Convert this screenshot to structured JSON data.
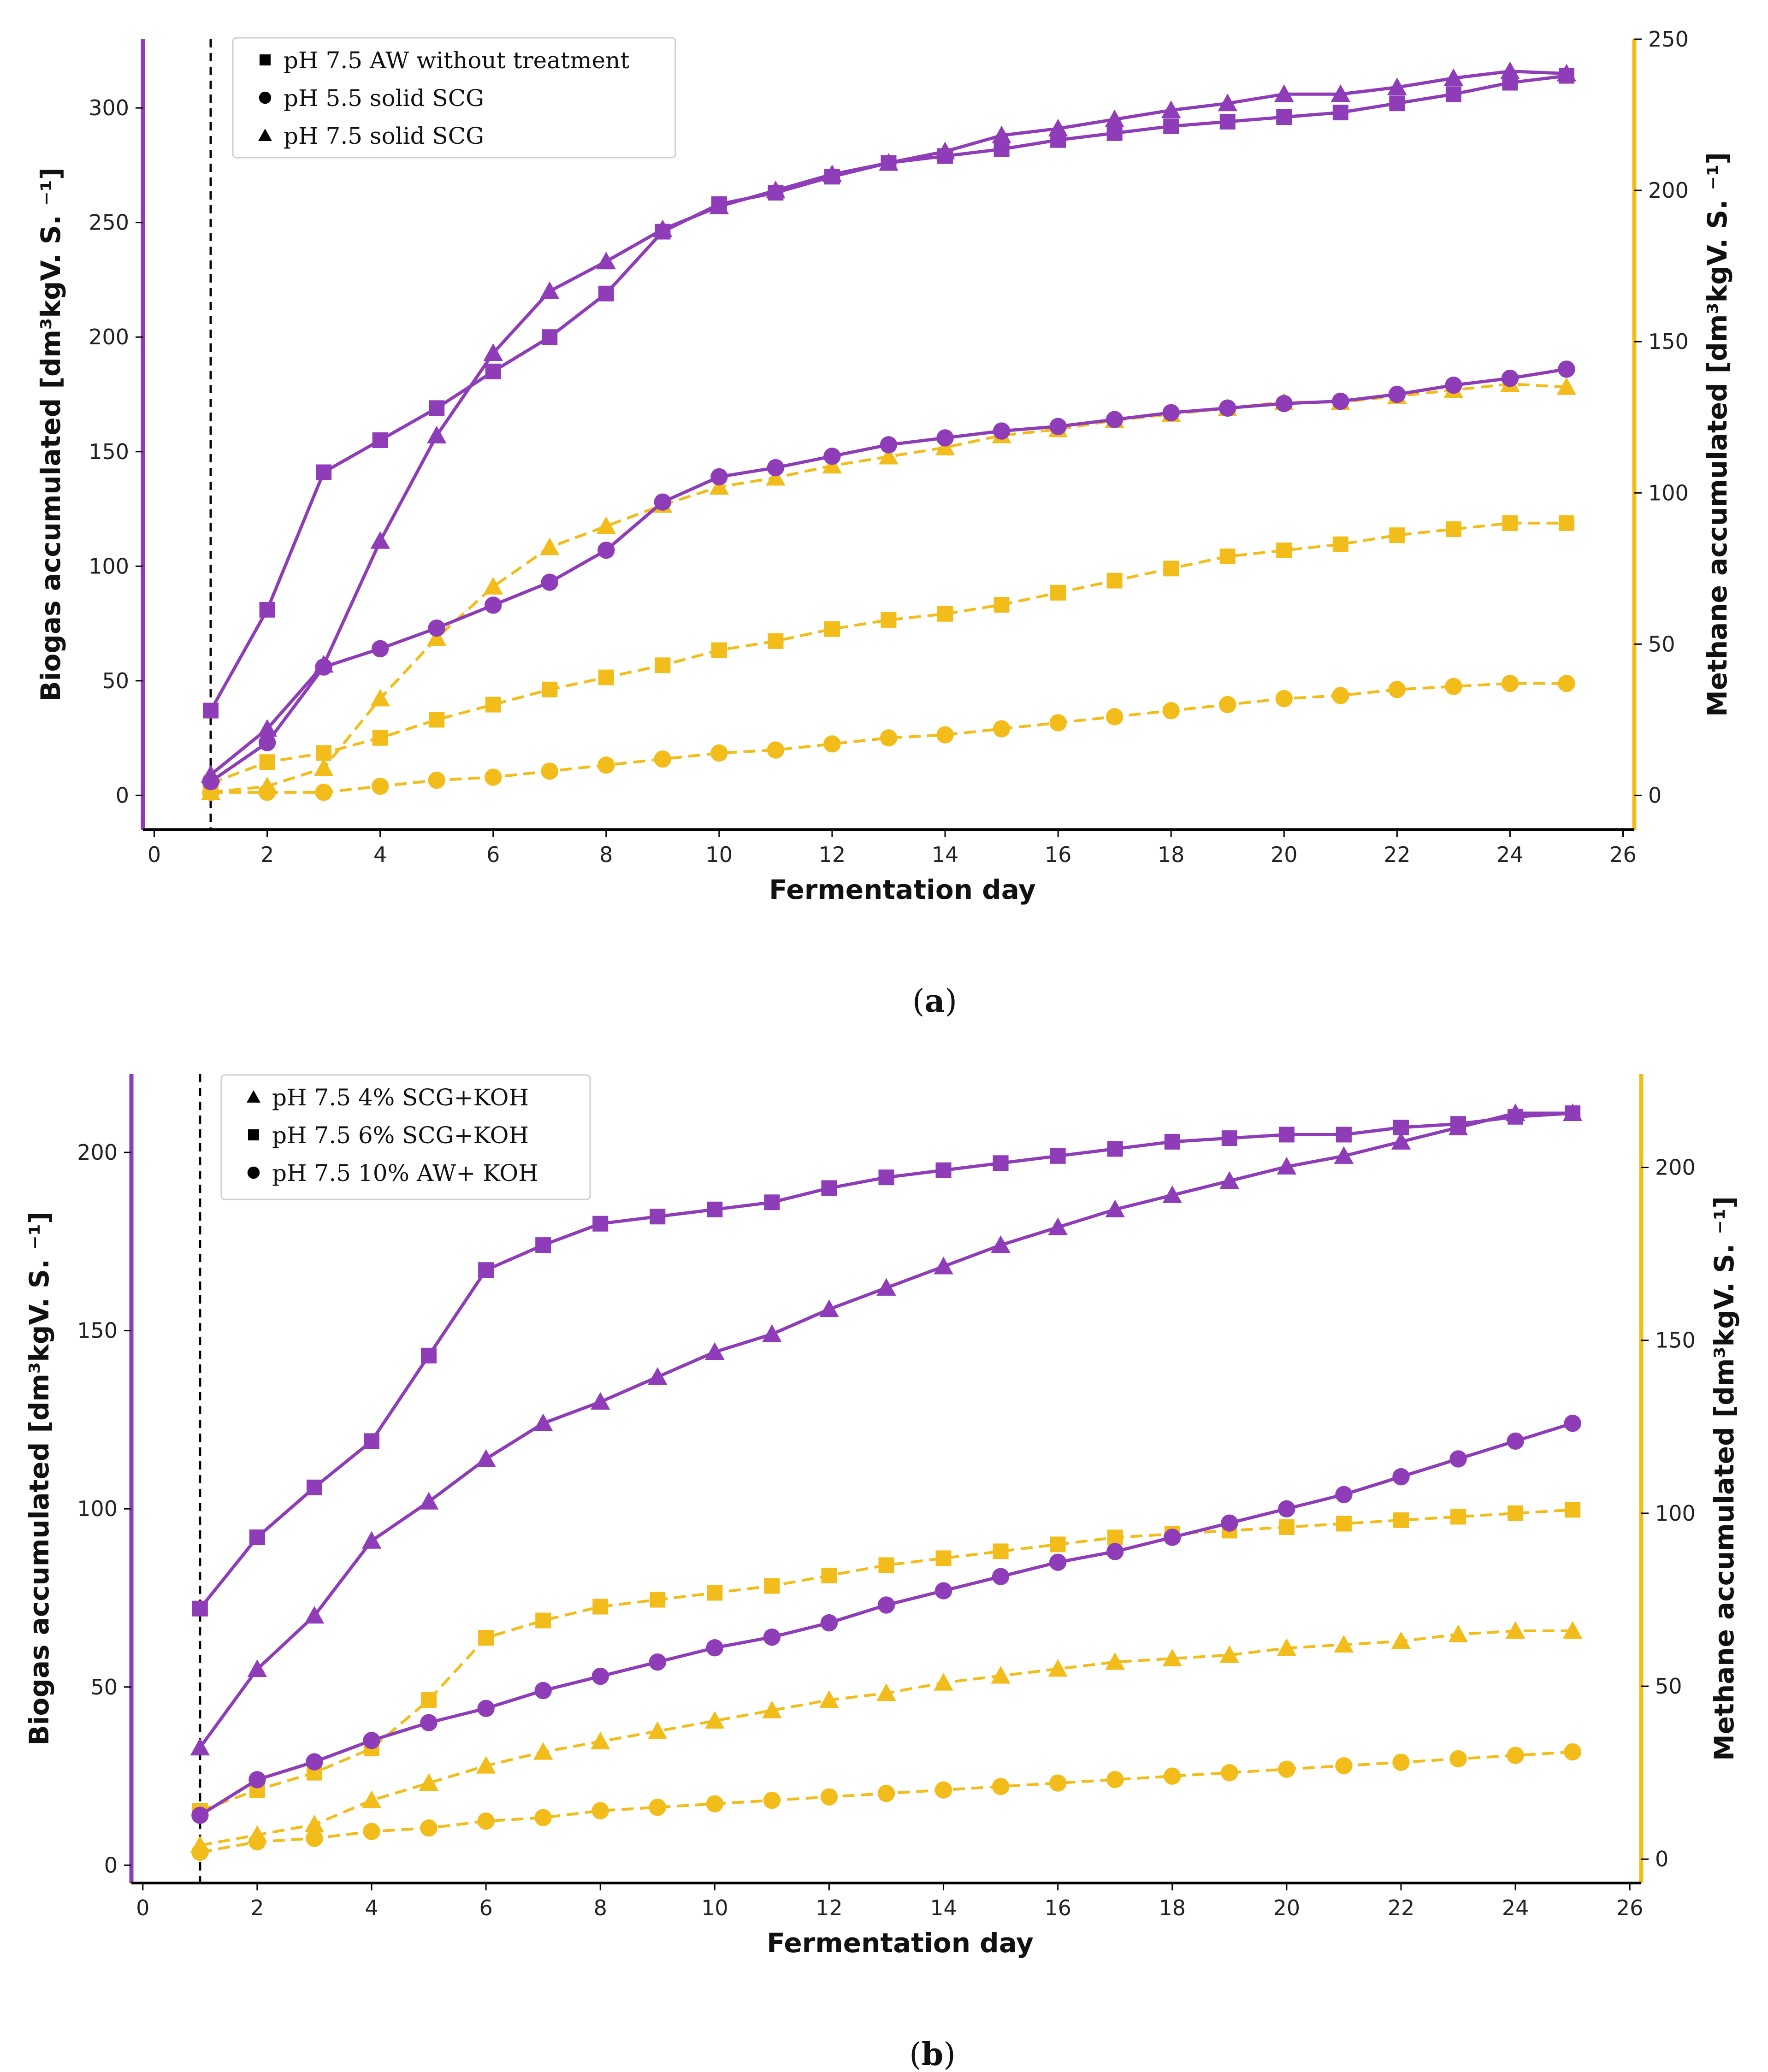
{
  "colors": {
    "biogas": "#8e3cb8",
    "methane": "#f2bc1b"
  },
  "chart_data": [
    {
      "type": "line",
      "caption_prefix": "(",
      "caption_letter": "a",
      "caption_suffix": ")",
      "xlabel": "Fermentation day",
      "ylabel_left": "Biogas accumulated [dm³kgV. S. ⁻¹]",
      "ylabel_right": "Methane accumulated [dm³kgV. S. ⁻¹]",
      "xlim": [
        -0.2,
        26.2
      ],
      "ylim_left": [
        -15,
        330
      ],
      "ylim_right": [
        -11.36,
        250
      ],
      "xticks": [
        0,
        2,
        4,
        6,
        8,
        10,
        12,
        14,
        16,
        18,
        20,
        22,
        24,
        26
      ],
      "yticks_left": [
        0,
        50,
        100,
        150,
        200,
        250,
        300
      ],
      "yticks_right": [
        0,
        50,
        100,
        150,
        200,
        250
      ],
      "vline_x": 1,
      "legend": [
        {
          "marker": "square",
          "label": "pH 7.5 AW without treatment"
        },
        {
          "marker": "circle",
          "label": "pH 5.5 solid SCG"
        },
        {
          "marker": "triangle",
          "label": "pH 7.5 solid SCG"
        }
      ],
      "x": [
        1,
        2,
        3,
        4,
        5,
        6,
        7,
        8,
        9,
        10,
        11,
        12,
        13,
        14,
        15,
        16,
        17,
        18,
        19,
        20,
        21,
        22,
        23,
        24,
        25
      ],
      "series": [
        {
          "name": "pH 7.5 AW without treatment",
          "quantity": "Biogas",
          "axis": "left",
          "marker": "square",
          "values": [
            37,
            81,
            141,
            155,
            169,
            185,
            200,
            219,
            246,
            258,
            263,
            270,
            276,
            279,
            282,
            286,
            289,
            292,
            294,
            296,
            298,
            302,
            306,
            311,
            314
          ]
        },
        {
          "name": "pH 5.5 solid SCG",
          "quantity": "Biogas",
          "axis": "left",
          "marker": "circle",
          "values": [
            6,
            23,
            56,
            64,
            73,
            83,
            93,
            107,
            128,
            139,
            143,
            148,
            153,
            156,
            159,
            161,
            164,
            167,
            169,
            171,
            172,
            175,
            179,
            182,
            186
          ]
        },
        {
          "name": "pH 7.5 solid SCG",
          "quantity": "Biogas",
          "axis": "left",
          "marker": "triangle",
          "values": [
            9,
            29,
            57,
            111,
            157,
            193,
            220,
            233,
            247,
            257,
            264,
            271,
            276,
            281,
            288,
            291,
            295,
            299,
            302,
            306,
            306,
            309,
            313,
            316,
            315
          ]
        },
        {
          "name": "pH 7.5 AW without treatment",
          "quantity": "Methane",
          "axis": "right",
          "marker": "square",
          "values": [
            4,
            11,
            14,
            19,
            25,
            30,
            35,
            39,
            43,
            48,
            51,
            55,
            58,
            60,
            63,
            67,
            71,
            75,
            79,
            81,
            83,
            86,
            88,
            90,
            90
          ]
        },
        {
          "name": "pH 5.5 solid SCG",
          "quantity": "Methane",
          "axis": "right",
          "marker": "circle",
          "values": [
            1,
            1,
            1,
            3,
            5,
            6,
            8,
            10,
            12,
            14,
            15,
            17,
            19,
            20,
            22,
            24,
            26,
            28,
            30,
            32,
            33,
            35,
            36,
            37,
            37
          ]
        },
        {
          "name": "pH 7.5 solid SCG",
          "quantity": "Methane",
          "axis": "right",
          "marker": "triangle",
          "values": [
            1,
            3,
            9,
            32,
            52,
            69,
            82,
            89,
            96,
            102,
            105,
            109,
            112,
            115,
            119,
            121,
            124,
            126,
            128,
            130,
            130,
            132,
            134,
            136,
            135
          ]
        }
      ]
    },
    {
      "type": "line",
      "caption_prefix": "(",
      "caption_letter": "b",
      "caption_suffix": ")",
      "xlabel": "Fermentation day",
      "ylabel_left": "Biogas accumulated [dm³kgV. S. ⁻¹]",
      "ylabel_right": "Methane accumulated [dm³kgV. S. ⁻¹]",
      "xlim": [
        -0.2,
        26.2
      ],
      "ylim_left": [
        -5,
        222
      ],
      "ylim_right": [
        -6.9,
        227
      ],
      "xticks": [
        0,
        2,
        4,
        6,
        8,
        10,
        12,
        14,
        16,
        18,
        20,
        22,
        24,
        26
      ],
      "yticks_left": [
        0,
        50,
        100,
        150,
        200
      ],
      "yticks_right": [
        0,
        50,
        100,
        150,
        200
      ],
      "vline_x": 1,
      "legend": [
        {
          "marker": "triangle",
          "label": "pH 7.5 4% SCG+KOH"
        },
        {
          "marker": "square",
          "label": "pH 7.5 6% SCG+KOH"
        },
        {
          "marker": "circle",
          "label": "pH 7.5 10% AW+ KOH"
        }
      ],
      "x": [
        1,
        2,
        3,
        4,
        5,
        6,
        7,
        8,
        9,
        10,
        11,
        12,
        13,
        14,
        15,
        16,
        17,
        18,
        19,
        20,
        21,
        22,
        23,
        24,
        25
      ],
      "series": [
        {
          "name": "pH 7.5 4% SCG+KOH",
          "quantity": "Biogas",
          "axis": "left",
          "marker": "triangle",
          "values": [
            33,
            55,
            70,
            91,
            102,
            114,
            124,
            130,
            137,
            144,
            149,
            156,
            162,
            168,
            174,
            179,
            184,
            188,
            192,
            196,
            199,
            203,
            207,
            211,
            211
          ]
        },
        {
          "name": "pH 7.5 6% SCG+KOH",
          "quantity": "Biogas",
          "axis": "left",
          "marker": "square",
          "values": [
            72,
            92,
            106,
            119,
            143,
            167,
            174,
            180,
            182,
            184,
            186,
            190,
            193,
            195,
            197,
            199,
            201,
            203,
            204,
            205,
            205,
            207,
            208,
            210,
            211
          ]
        },
        {
          "name": "pH 7.5 10% AW+ KOH",
          "quantity": "Biogas",
          "axis": "left",
          "marker": "circle",
          "values": [
            14,
            24,
            29,
            35,
            40,
            44,
            49,
            53,
            57,
            61,
            64,
            68,
            73,
            77,
            81,
            85,
            88,
            92,
            96,
            100,
            104,
            109,
            114,
            119,
            124
          ]
        },
        {
          "name": "pH 7.5 4% SCG+KOH",
          "quantity": "Methane",
          "axis": "right",
          "marker": "triangle",
          "values": [
            4,
            7,
            10,
            17,
            22,
            27,
            31,
            34,
            37,
            40,
            43,
            46,
            48,
            51,
            53,
            55,
            57,
            58,
            59,
            61,
            62,
            63,
            65,
            66,
            66
          ]
        },
        {
          "name": "pH 7.5 6% SCG+KOH",
          "quantity": "Methane",
          "axis": "right",
          "marker": "square",
          "values": [
            14,
            20,
            25,
            32,
            46,
            64,
            69,
            73,
            75,
            77,
            79,
            82,
            85,
            87,
            89,
            91,
            93,
            94,
            95,
            96,
            97,
            98,
            99,
            100,
            101
          ]
        },
        {
          "name": "pH 7.5 10% AW+ KOH",
          "quantity": "Methane",
          "axis": "right",
          "marker": "circle",
          "values": [
            2,
            5,
            6,
            8,
            9,
            11,
            12,
            14,
            15,
            16,
            17,
            18,
            19,
            20,
            21,
            22,
            23,
            24,
            25,
            26,
            27,
            28,
            29,
            30,
            31
          ]
        }
      ]
    }
  ]
}
